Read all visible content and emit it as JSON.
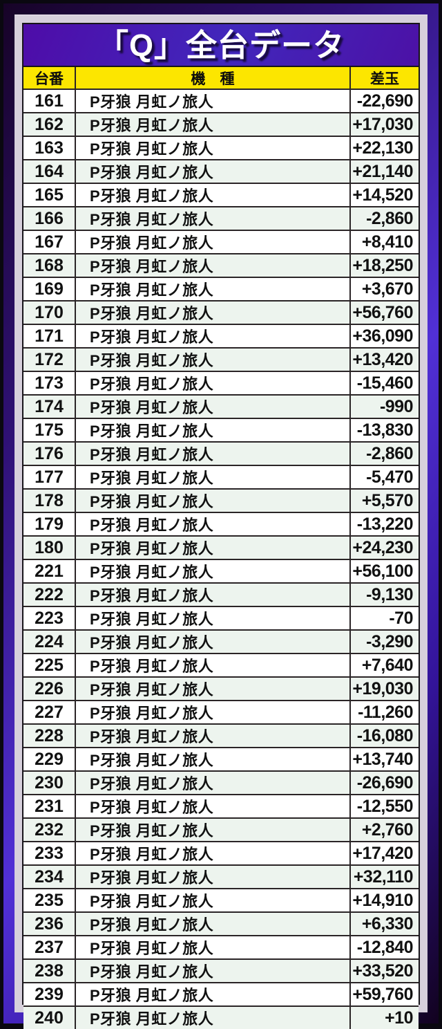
{
  "title": "「Q」全台データ",
  "colors": {
    "frame_purple": "#4a28c0",
    "frame_dark": "#170327",
    "mat_lavender": "#d7d0dc",
    "title_band_purple": "#4a0fa8",
    "header_yellow": "#fce600",
    "row_white": "#ffffff",
    "row_alt_green": "#edf4ee",
    "grid_border": "#2a2426",
    "title_text": "#ffffff",
    "body_text": "#111111"
  },
  "table": {
    "headers": {
      "no": "台番",
      "model": "機　種",
      "diff": "差玉"
    },
    "rows": [
      {
        "no": "161",
        "model": "P牙狼 月虹ノ旅人",
        "diff": "-22,690"
      },
      {
        "no": "162",
        "model": "P牙狼 月虹ノ旅人",
        "diff": "+17,030"
      },
      {
        "no": "163",
        "model": "P牙狼 月虹ノ旅人",
        "diff": "+22,130"
      },
      {
        "no": "164",
        "model": "P牙狼 月虹ノ旅人",
        "diff": "+21,140"
      },
      {
        "no": "165",
        "model": "P牙狼 月虹ノ旅人",
        "diff": "+14,520"
      },
      {
        "no": "166",
        "model": "P牙狼 月虹ノ旅人",
        "diff": "-2,860"
      },
      {
        "no": "167",
        "model": "P牙狼 月虹ノ旅人",
        "diff": "+8,410"
      },
      {
        "no": "168",
        "model": "P牙狼 月虹ノ旅人",
        "diff": "+18,250"
      },
      {
        "no": "169",
        "model": "P牙狼 月虹ノ旅人",
        "diff": "+3,670"
      },
      {
        "no": "170",
        "model": "P牙狼 月虹ノ旅人",
        "diff": "+56,760"
      },
      {
        "no": "171",
        "model": "P牙狼 月虹ノ旅人",
        "diff": "+36,090"
      },
      {
        "no": "172",
        "model": "P牙狼 月虹ノ旅人",
        "diff": "+13,420"
      },
      {
        "no": "173",
        "model": "P牙狼 月虹ノ旅人",
        "diff": "-15,460"
      },
      {
        "no": "174",
        "model": "P牙狼 月虹ノ旅人",
        "diff": "-990"
      },
      {
        "no": "175",
        "model": "P牙狼 月虹ノ旅人",
        "diff": "-13,830"
      },
      {
        "no": "176",
        "model": "P牙狼 月虹ノ旅人",
        "diff": "-2,860"
      },
      {
        "no": "177",
        "model": "P牙狼 月虹ノ旅人",
        "diff": "-5,470"
      },
      {
        "no": "178",
        "model": "P牙狼 月虹ノ旅人",
        "diff": "+5,570"
      },
      {
        "no": "179",
        "model": "P牙狼 月虹ノ旅人",
        "diff": "-13,220"
      },
      {
        "no": "180",
        "model": "P牙狼 月虹ノ旅人",
        "diff": "+24,230"
      },
      {
        "no": "221",
        "model": "P牙狼 月虹ノ旅人",
        "diff": "+56,100"
      },
      {
        "no": "222",
        "model": "P牙狼 月虹ノ旅人",
        "diff": "-9,130"
      },
      {
        "no": "223",
        "model": "P牙狼 月虹ノ旅人",
        "diff": "-70"
      },
      {
        "no": "224",
        "model": "P牙狼 月虹ノ旅人",
        "diff": "-3,290"
      },
      {
        "no": "225",
        "model": "P牙狼 月虹ノ旅人",
        "diff": "+7,640"
      },
      {
        "no": "226",
        "model": "P牙狼 月虹ノ旅人",
        "diff": "+19,030"
      },
      {
        "no": "227",
        "model": "P牙狼 月虹ノ旅人",
        "diff": "-11,260"
      },
      {
        "no": "228",
        "model": "P牙狼 月虹ノ旅人",
        "diff": "-16,080"
      },
      {
        "no": "229",
        "model": "P牙狼 月虹ノ旅人",
        "diff": "+13,740"
      },
      {
        "no": "230",
        "model": "P牙狼 月虹ノ旅人",
        "diff": "-26,690"
      },
      {
        "no": "231",
        "model": "P牙狼 月虹ノ旅人",
        "diff": "-12,550"
      },
      {
        "no": "232",
        "model": "P牙狼 月虹ノ旅人",
        "diff": "+2,760"
      },
      {
        "no": "233",
        "model": "P牙狼 月虹ノ旅人",
        "diff": "+17,420"
      },
      {
        "no": "234",
        "model": "P牙狼 月虹ノ旅人",
        "diff": "+32,110"
      },
      {
        "no": "235",
        "model": "P牙狼 月虹ノ旅人",
        "diff": "+14,910"
      },
      {
        "no": "236",
        "model": "P牙狼 月虹ノ旅人",
        "diff": "+6,330"
      },
      {
        "no": "237",
        "model": "P牙狼 月虹ノ旅人",
        "diff": "-12,840"
      },
      {
        "no": "238",
        "model": "P牙狼 月虹ノ旅人",
        "diff": "+33,520"
      },
      {
        "no": "239",
        "model": "P牙狼 月虹ノ旅人",
        "diff": "+59,760"
      },
      {
        "no": "240",
        "model": "P牙狼 月虹ノ旅人",
        "diff": "+10"
      }
    ]
  },
  "chart_data": {
    "type": "table",
    "title": "「Q」全台データ",
    "columns": [
      "台番",
      "機　種",
      "差玉"
    ],
    "machine_numbers": [
      161,
      162,
      163,
      164,
      165,
      166,
      167,
      168,
      169,
      170,
      171,
      172,
      173,
      174,
      175,
      176,
      177,
      178,
      179,
      180,
      221,
      222,
      223,
      224,
      225,
      226,
      227,
      228,
      229,
      230,
      231,
      232,
      233,
      234,
      235,
      236,
      237,
      238,
      239,
      240
    ],
    "machine_model": "P牙狼 月虹ノ旅人",
    "diff_values": [
      -22690,
      17030,
      22130,
      21140,
      14520,
      -2860,
      8410,
      18250,
      3670,
      56760,
      36090,
      13420,
      -15460,
      -990,
      -13830,
      -2860,
      -5470,
      5570,
      -13220,
      24230,
      56100,
      -9130,
      -70,
      -3290,
      7640,
      19030,
      -11260,
      -16080,
      13740,
      -26690,
      -12550,
      2760,
      17420,
      32110,
      14910,
      6330,
      -12840,
      33520,
      59760,
      10
    ],
    "layout": "alternating row stripes (white / pale green), yellow header band, purple title band"
  }
}
